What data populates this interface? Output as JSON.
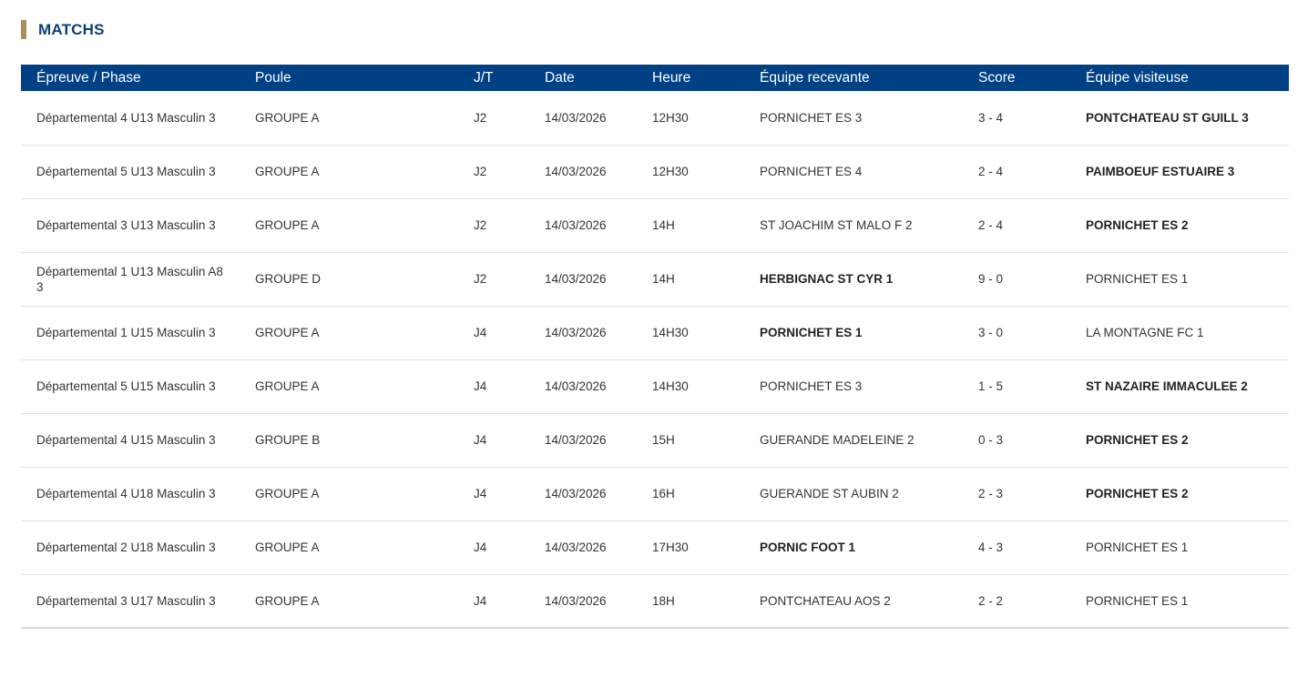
{
  "section": {
    "title": "MATCHS"
  },
  "table": {
    "headers": [
      "Épreuve / Phase",
      "Poule",
      "J/T",
      "Date",
      "Heure",
      "Équipe recevante",
      "Score",
      "Équipe visiteuse"
    ],
    "rows": [
      {
        "epreuve": "Départemental 4 U13 Masculin 3",
        "poule": "GROUPE A",
        "jt": "J2",
        "date": "14/03/2026",
        "heure": "12H30",
        "recevante": "PORNICHET ES 3",
        "score": "3 - 4",
        "visiteuse": "PONTCHATEAU ST GUILL 3",
        "winner": "away"
      },
      {
        "epreuve": "Départemental 5 U13 Masculin 3",
        "poule": "GROUPE A",
        "jt": "J2",
        "date": "14/03/2026",
        "heure": "12H30",
        "recevante": "PORNICHET ES 4",
        "score": "2 - 4",
        "visiteuse": "PAIMBOEUF ESTUAIRE 3",
        "winner": "away"
      },
      {
        "epreuve": "Départemental 3 U13 Masculin 3",
        "poule": "GROUPE A",
        "jt": "J2",
        "date": "14/03/2026",
        "heure": "14H",
        "recevante": "ST JOACHIM ST MALO F 2",
        "score": "2 - 4",
        "visiteuse": "PORNICHET ES 2",
        "winner": "away"
      },
      {
        "epreuve": "Départemental 1 U13 Masculin A8 3",
        "poule": "GROUPE D",
        "jt": "J2",
        "date": "14/03/2026",
        "heure": "14H",
        "recevante": "HERBIGNAC ST CYR 1",
        "score": "9 - 0",
        "visiteuse": "PORNICHET ES 1",
        "winner": "home"
      },
      {
        "epreuve": "Départemental 1 U15 Masculin 3",
        "poule": "GROUPE A",
        "jt": "J4",
        "date": "14/03/2026",
        "heure": "14H30",
        "recevante": "PORNICHET ES 1",
        "score": "3 - 0",
        "visiteuse": "LA MONTAGNE FC 1",
        "winner": "home"
      },
      {
        "epreuve": "Départemental 5 U15 Masculin 3",
        "poule": "GROUPE A",
        "jt": "J4",
        "date": "14/03/2026",
        "heure": "14H30",
        "recevante": "PORNICHET ES 3",
        "score": "1 - 5",
        "visiteuse": "ST NAZAIRE IMMACULEE 2",
        "winner": "away"
      },
      {
        "epreuve": "Départemental 4 U15 Masculin 3",
        "poule": "GROUPE B",
        "jt": "J4",
        "date": "14/03/2026",
        "heure": "15H",
        "recevante": "GUERANDE MADELEINE 2",
        "score": "0 - 3",
        "visiteuse": "PORNICHET ES 2",
        "winner": "away"
      },
      {
        "epreuve": "Départemental 4 U18 Masculin 3",
        "poule": "GROUPE A",
        "jt": "J4",
        "date": "14/03/2026",
        "heure": "16H",
        "recevante": "GUERANDE ST AUBIN 2",
        "score": "2 - 3",
        "visiteuse": "PORNICHET ES 2",
        "winner": "away"
      },
      {
        "epreuve": "Départemental 2 U18 Masculin 3",
        "poule": "GROUPE A",
        "jt": "J4",
        "date": "14/03/2026",
        "heure": "17H30",
        "recevante": "PORNIC FOOT 1",
        "score": "4 - 3",
        "visiteuse": "PORNICHET ES 1",
        "winner": "home"
      },
      {
        "epreuve": "Départemental 3 U17 Masculin 3",
        "poule": "GROUPE A",
        "jt": "J4",
        "date": "14/03/2026",
        "heure": "18H",
        "recevante": "PONTCHATEAU AOS 2",
        "score": "2 - 2",
        "visiteuse": "PORNICHET ES 1",
        "winner": "none"
      }
    ]
  },
  "colors": {
    "header_bg": "#004185",
    "title_text": "#0b3f7a",
    "title_accent": "#b08d57"
  }
}
